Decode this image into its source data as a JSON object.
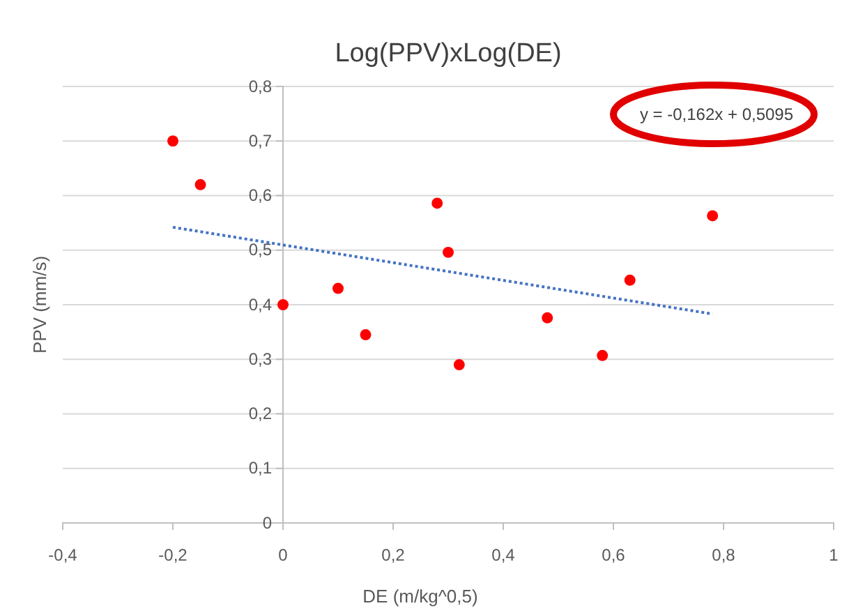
{
  "chart_data": {
    "type": "scatter",
    "title": "Log(PPV)xLog(DE)",
    "xlabel": "DE (m/kg^0,5)",
    "ylabel": "PPV (mm/s)",
    "annotations": [
      "y = -0,162x + 0,5095"
    ],
    "xlim": [
      -0.4,
      1
    ],
    "ylim": [
      0,
      0.8
    ],
    "xticks": [
      {
        "value": -0.4,
        "label": "-0,4"
      },
      {
        "value": -0.2,
        "label": "-0,2"
      },
      0,
      {
        "value": 0.2,
        "label": "0,2"
      },
      {
        "value": 0.4,
        "label": "0,4"
      },
      {
        "value": 0.6,
        "label": "0,6"
      },
      {
        "value": 0.8,
        "label": "0,8"
      },
      1
    ],
    "yticks": [
      0,
      {
        "value": 0.1,
        "label": "0,1"
      },
      {
        "value": 0.2,
        "label": "0,2"
      },
      {
        "value": 0.3,
        "label": "0,3"
      },
      {
        "value": 0.4,
        "label": "0,4"
      },
      {
        "value": 0.5,
        "label": "0,5"
      },
      {
        "value": 0.6,
        "label": "0,6"
      },
      {
        "value": 0.7,
        "label": "0,7"
      },
      {
        "value": 0.8,
        "label": "0,8"
      }
    ],
    "grid": "y",
    "series": [
      {
        "marker": "circle",
        "color": "#ff0000",
        "x": [
          -0.2,
          -0.15,
          0,
          0.1,
          0.15,
          0.28,
          0.3,
          0.32,
          0.48,
          0.58,
          0.63,
          0.78
        ],
        "values": [
          0.7,
          0.62,
          0.4,
          0.43,
          0.345,
          0.586,
          0.496,
          0.29,
          0.376,
          0.307,
          0.445,
          0.563
        ]
      },
      {
        "type": "line",
        "color": "#4472c4",
        "line_style": "dotted",
        "x": [
          -0.2,
          0.78
        ],
        "values": [
          0.542,
          0.383
        ]
      }
    ]
  }
}
